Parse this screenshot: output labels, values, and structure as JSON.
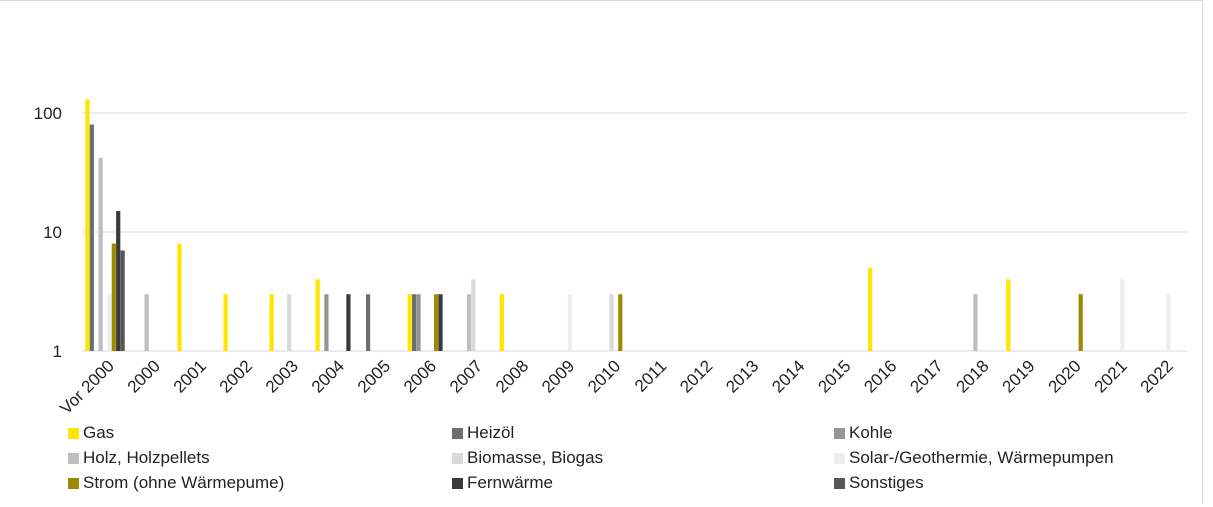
{
  "chart_data": {
    "type": "bar",
    "scale": "log",
    "ylim": [
      1,
      1000
    ],
    "y_ticks": [
      "1",
      "10",
      "100"
    ],
    "grid": true,
    "legend_placement": "bottom",
    "categories": [
      "Vor 2000",
      "2000",
      "2001",
      "2002",
      "2003",
      "2004",
      "2005",
      "2006",
      "2007",
      "2008",
      "2009",
      "2010",
      "2011",
      "2012",
      "2013",
      "2014",
      "2015",
      "2016",
      "2017",
      "2018",
      "2019",
      "2020",
      "2021",
      "2022"
    ],
    "series": [
      {
        "name": "Gas",
        "color": "#ffe600",
        "values": [
          130,
          null,
          8,
          3,
          3,
          4,
          null,
          3,
          null,
          3,
          null,
          null,
          null,
          null,
          null,
          null,
          null,
          5,
          null,
          null,
          4,
          null,
          null,
          null
        ]
      },
      {
        "name": "Heizöl",
        "color": "#6d6e71",
        "values": [
          80,
          null,
          null,
          null,
          null,
          null,
          3,
          3,
          null,
          null,
          null,
          null,
          null,
          null,
          null,
          null,
          null,
          null,
          null,
          null,
          null,
          null,
          null,
          null
        ]
      },
      {
        "name": "Kohle",
        "color": "#939598",
        "values": [
          null,
          null,
          null,
          null,
          null,
          3,
          null,
          3,
          null,
          null,
          null,
          null,
          null,
          null,
          null,
          null,
          null,
          null,
          null,
          null,
          null,
          null,
          null,
          null
        ]
      },
      {
        "name": "Holz, Holzpellets",
        "color": "#bcbec0",
        "values": [
          42,
          3,
          null,
          null,
          null,
          null,
          null,
          null,
          3,
          null,
          null,
          null,
          null,
          null,
          null,
          null,
          null,
          null,
          null,
          3,
          null,
          null,
          null,
          null
        ]
      },
      {
        "name": "Biomasse, Biogas",
        "color": "#d9d9d9",
        "values": [
          null,
          null,
          null,
          null,
          3,
          null,
          null,
          null,
          4,
          null,
          null,
          3,
          null,
          null,
          null,
          null,
          null,
          null,
          null,
          null,
          null,
          null,
          null,
          null
        ]
      },
      {
        "name": "Solar-/Geothermie, Wärmepumpen",
        "color": "#ededed",
        "values": [
          3,
          null,
          null,
          null,
          null,
          null,
          null,
          null,
          null,
          null,
          3,
          null,
          null,
          null,
          null,
          null,
          null,
          null,
          null,
          null,
          null,
          null,
          4,
          3
        ]
      },
      {
        "name": "Strom (ohne Wärmepume)",
        "color": "#9c8a05",
        "values": [
          8,
          null,
          null,
          null,
          null,
          null,
          null,
          3,
          null,
          null,
          null,
          3,
          null,
          null,
          null,
          null,
          null,
          null,
          null,
          null,
          null,
          3,
          null,
          null
        ]
      },
      {
        "name": "Fernwärme",
        "color": "#3a3a3c",
        "values": [
          15,
          null,
          null,
          null,
          null,
          3,
          null,
          3,
          null,
          null,
          null,
          null,
          null,
          null,
          null,
          null,
          null,
          null,
          null,
          null,
          null,
          null,
          null,
          null
        ]
      },
      {
        "name": "Sonstiges",
        "color": "#55575b",
        "values": [
          7,
          null,
          null,
          null,
          null,
          null,
          null,
          null,
          null,
          null,
          null,
          null,
          null,
          null,
          null,
          null,
          null,
          null,
          null,
          null,
          null,
          null,
          null,
          null
        ]
      }
    ]
  }
}
